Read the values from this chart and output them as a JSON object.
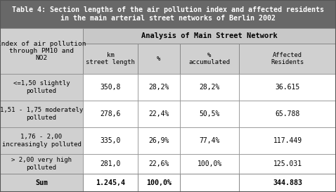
{
  "title_line1": "Table 4: Section lengths of the air pollution index and affected residents",
  "title_line2": "in the main arterial street networks of Berlin 2002",
  "title_bg": "#686868",
  "title_fg": "#ffffff",
  "header1_text": "Index of air pollution\nthrough PM10 and\nNO2",
  "header2_text": "Analysis of Main Street Network",
  "col_headers": [
    "km\nstreet length",
    "%",
    "%\naccumulated",
    "Affected\nResidents"
  ],
  "row_labels": [
    "<=1,50 slightly\npolluted",
    "1,51 - 1,75 moderately\npolluted",
    "1,76 - 2,00\nincreasingly polluted",
    "> 2,00 very high\npolluted",
    "Sum"
  ],
  "data": [
    [
      "350,8",
      "28,2%",
      "28,2%",
      "36.615"
    ],
    [
      "278,6",
      "22,4%",
      "50,5%",
      "65.788"
    ],
    [
      "335,0",
      "26,9%",
      "77,4%",
      "117.449"
    ],
    [
      "281,0",
      "22,6%",
      "100,0%",
      "125.031"
    ],
    [
      "1.245,4",
      "100,0%",
      "",
      "344.883"
    ]
  ],
  "bg_gray": "#d0d0d0",
  "bg_white": "#ffffff",
  "bg_subheader": "#c8c8c8",
  "border_color": "#888888",
  "title_fontsize": 7.2,
  "header_fontsize": 6.8,
  "data_fontsize": 7.0,
  "sum_fontsize": 7.2,
  "fig_w": 4.78,
  "fig_h": 2.73,
  "dpi": 100
}
